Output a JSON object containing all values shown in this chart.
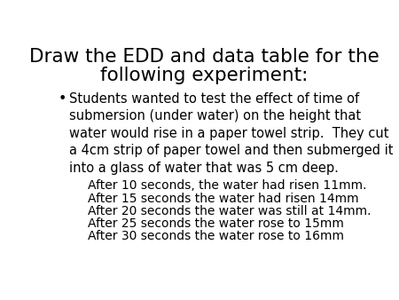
{
  "title_line1": "Draw the EDD and data table for the",
  "title_line2": "following experiment:",
  "bullet_text": "Students wanted to test the effect of time of\nsubmersion (under water) on the height that\nwater would rise in a paper towel strip.  They cut\na 4cm strip of paper towel and then submerged it\ninto a glass of water that was 5 cm deep.",
  "data_lines": [
    "After 10 seconds, the water had risen 11mm.",
    "After 15 seconds the water had risen 14mm",
    "After 20 seconds the water was still at 14mm.",
    "After 25 seconds the water rose to 15mm",
    "After 30 seconds the water rose to 16mm"
  ],
  "background_color": "#ffffff",
  "text_color": "#000000",
  "title_fontsize": 15.5,
  "body_fontsize": 10.5,
  "data_fontsize": 10.0
}
